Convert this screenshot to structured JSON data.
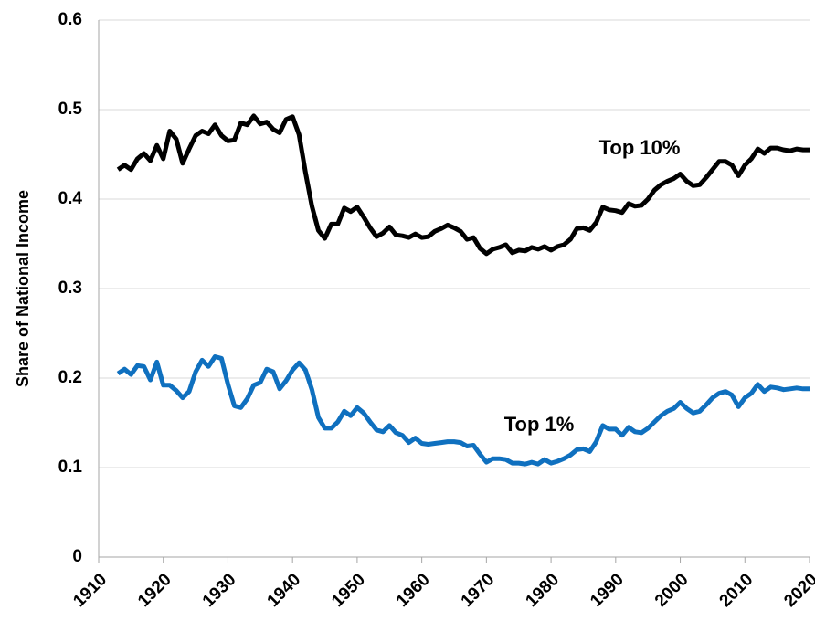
{
  "chart_data": {
    "type": "line",
    "y_label": "Share of National Income",
    "x": [
      1913,
      1914,
      1915,
      1916,
      1917,
      1918,
      1919,
      1920,
      1921,
      1922,
      1923,
      1924,
      1925,
      1926,
      1927,
      1928,
      1929,
      1930,
      1931,
      1932,
      1933,
      1934,
      1935,
      1936,
      1937,
      1938,
      1939,
      1940,
      1941,
      1942,
      1943,
      1944,
      1945,
      1946,
      1947,
      1948,
      1949,
      1950,
      1951,
      1952,
      1953,
      1954,
      1955,
      1956,
      1957,
      1958,
      1959,
      1960,
      1961,
      1962,
      1963,
      1964,
      1965,
      1966,
      1967,
      1968,
      1969,
      1970,
      1971,
      1972,
      1973,
      1974,
      1975,
      1976,
      1977,
      1978,
      1979,
      1980,
      1981,
      1982,
      1983,
      1984,
      1985,
      1986,
      1987,
      1988,
      1989,
      1990,
      1991,
      1992,
      1993,
      1994,
      1995,
      1996,
      1997,
      1998,
      1999,
      2000,
      2001,
      2002,
      2003,
      2004,
      2005,
      2006,
      2007,
      2008,
      2009,
      2010,
      2011,
      2012,
      2013,
      2014,
      2015,
      2016,
      2017,
      2018,
      2019,
      2020
    ],
    "series": [
      {
        "name": "Top 10%",
        "color": "#000000",
        "values": [
          0.433,
          0.438,
          0.433,
          0.445,
          0.451,
          0.443,
          0.46,
          0.445,
          0.476,
          0.467,
          0.44,
          0.456,
          0.471,
          0.476,
          0.473,
          0.483,
          0.471,
          0.465,
          0.466,
          0.485,
          0.483,
          0.493,
          0.484,
          0.486,
          0.478,
          0.474,
          0.489,
          0.492,
          0.472,
          0.43,
          0.392,
          0.365,
          0.356,
          0.372,
          0.372,
          0.39,
          0.386,
          0.391,
          0.38,
          0.368,
          0.358,
          0.362,
          0.369,
          0.36,
          0.359,
          0.357,
          0.361,
          0.357,
          0.358,
          0.364,
          0.367,
          0.371,
          0.368,
          0.364,
          0.355,
          0.357,
          0.345,
          0.339,
          0.344,
          0.346,
          0.349,
          0.34,
          0.343,
          0.342,
          0.346,
          0.344,
          0.347,
          0.343,
          0.347,
          0.349,
          0.355,
          0.367,
          0.368,
          0.365,
          0.374,
          0.391,
          0.388,
          0.387,
          0.385,
          0.395,
          0.392,
          0.393,
          0.4,
          0.41,
          0.416,
          0.42,
          0.423,
          0.428,
          0.42,
          0.415,
          0.416,
          0.424,
          0.433,
          0.442,
          0.442,
          0.438,
          0.426,
          0.438,
          0.445,
          0.456,
          0.451,
          0.457,
          0.457,
          0.455,
          0.454,
          0.456,
          0.455,
          0.455
        ]
      },
      {
        "name": "Top 1%",
        "color": "#0f70bf",
        "values": [
          0.205,
          0.21,
          0.204,
          0.214,
          0.213,
          0.198,
          0.218,
          0.192,
          0.192,
          0.186,
          0.178,
          0.185,
          0.207,
          0.22,
          0.213,
          0.224,
          0.222,
          0.193,
          0.169,
          0.167,
          0.177,
          0.192,
          0.195,
          0.21,
          0.207,
          0.188,
          0.197,
          0.209,
          0.217,
          0.209,
          0.187,
          0.156,
          0.144,
          0.144,
          0.151,
          0.163,
          0.158,
          0.167,
          0.161,
          0.151,
          0.142,
          0.14,
          0.147,
          0.139,
          0.136,
          0.128,
          0.133,
          0.127,
          0.126,
          0.127,
          0.128,
          0.129,
          0.129,
          0.128,
          0.124,
          0.125,
          0.115,
          0.106,
          0.11,
          0.11,
          0.109,
          0.105,
          0.105,
          0.104,
          0.106,
          0.104,
          0.109,
          0.105,
          0.107,
          0.11,
          0.114,
          0.12,
          0.121,
          0.118,
          0.129,
          0.147,
          0.143,
          0.143,
          0.136,
          0.145,
          0.14,
          0.139,
          0.144,
          0.151,
          0.158,
          0.163,
          0.166,
          0.173,
          0.166,
          0.161,
          0.163,
          0.17,
          0.178,
          0.183,
          0.185,
          0.181,
          0.168,
          0.178,
          0.183,
          0.193,
          0.185,
          0.19,
          0.189,
          0.187,
          0.188,
          0.189,
          0.188,
          0.188
        ]
      }
    ],
    "xlim": [
      1910,
      2020
    ],
    "xticks": [
      1910,
      1920,
      1930,
      1940,
      1950,
      1960,
      1970,
      1980,
      1990,
      2000,
      2010,
      2020
    ],
    "ylim": [
      0,
      0.6
    ],
    "yticks": [
      0,
      0.1,
      0.2,
      0.3,
      0.4,
      0.5,
      0.6
    ],
    "grid": true
  }
}
